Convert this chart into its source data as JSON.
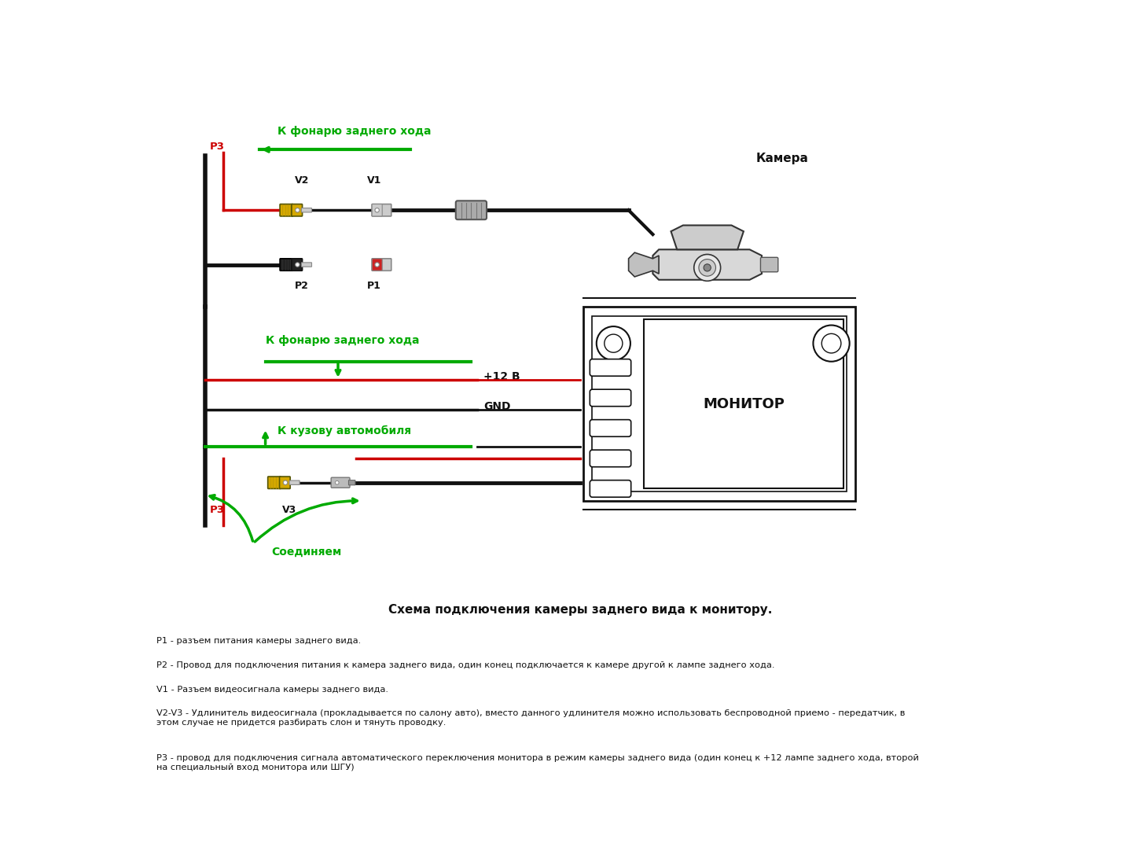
{
  "title": "Схема подключения камеры заднего вида к монитору.",
  "bg_color": "#ffffff",
  "fig_width": 14.4,
  "fig_height": 10.72,
  "label_camera": "Камера",
  "label_monitor": "МОНИТОР",
  "label_p1": "P1",
  "label_p2": "P2",
  "label_v1": "V1",
  "label_v2": "V2",
  "label_v3": "V3",
  "label_p3_top": "P3",
  "label_p3_bot": "P3",
  "label_k_fonary_top": "К фонарю заднего хода",
  "label_k_fonary_mid": "К фонарю заднего хода",
  "label_k_kuzovu": "К кузову автомобиля",
  "label_soedinyaem": "Соединяем",
  "label_plus12": "+12 В",
  "label_gnd": "GND",
  "green": "#00aa00",
  "red": "#cc0000",
  "black": "#111111",
  "yellow": "#d4a800",
  "desc_p1": "P1 - разъем питания камеры заднего вида.",
  "desc_p2": "P2 - Провод для подключения питания к камера заднего вида, один конец подключается к камере другой к лампе заднего хода.",
  "desc_v1": "V1 - Разъем видеосигнала камеры заднего вида.",
  "desc_v2v3": "V2-V3 - Удлинитель видеосигнала (прокладывается по салону авто), вместо данного удлинителя можно использовать беспроводной приемо - передатчик, в\nэтом случае не придется разбирать слон и тянуть проводку.",
  "desc_p3": "Р3 - провод для подключения сигнала автоматического переключения монитора в режим камеры заднего вида (один конец к +12 лампе заднего хода, второй\nна специальный вход монитора или ШГУ)"
}
